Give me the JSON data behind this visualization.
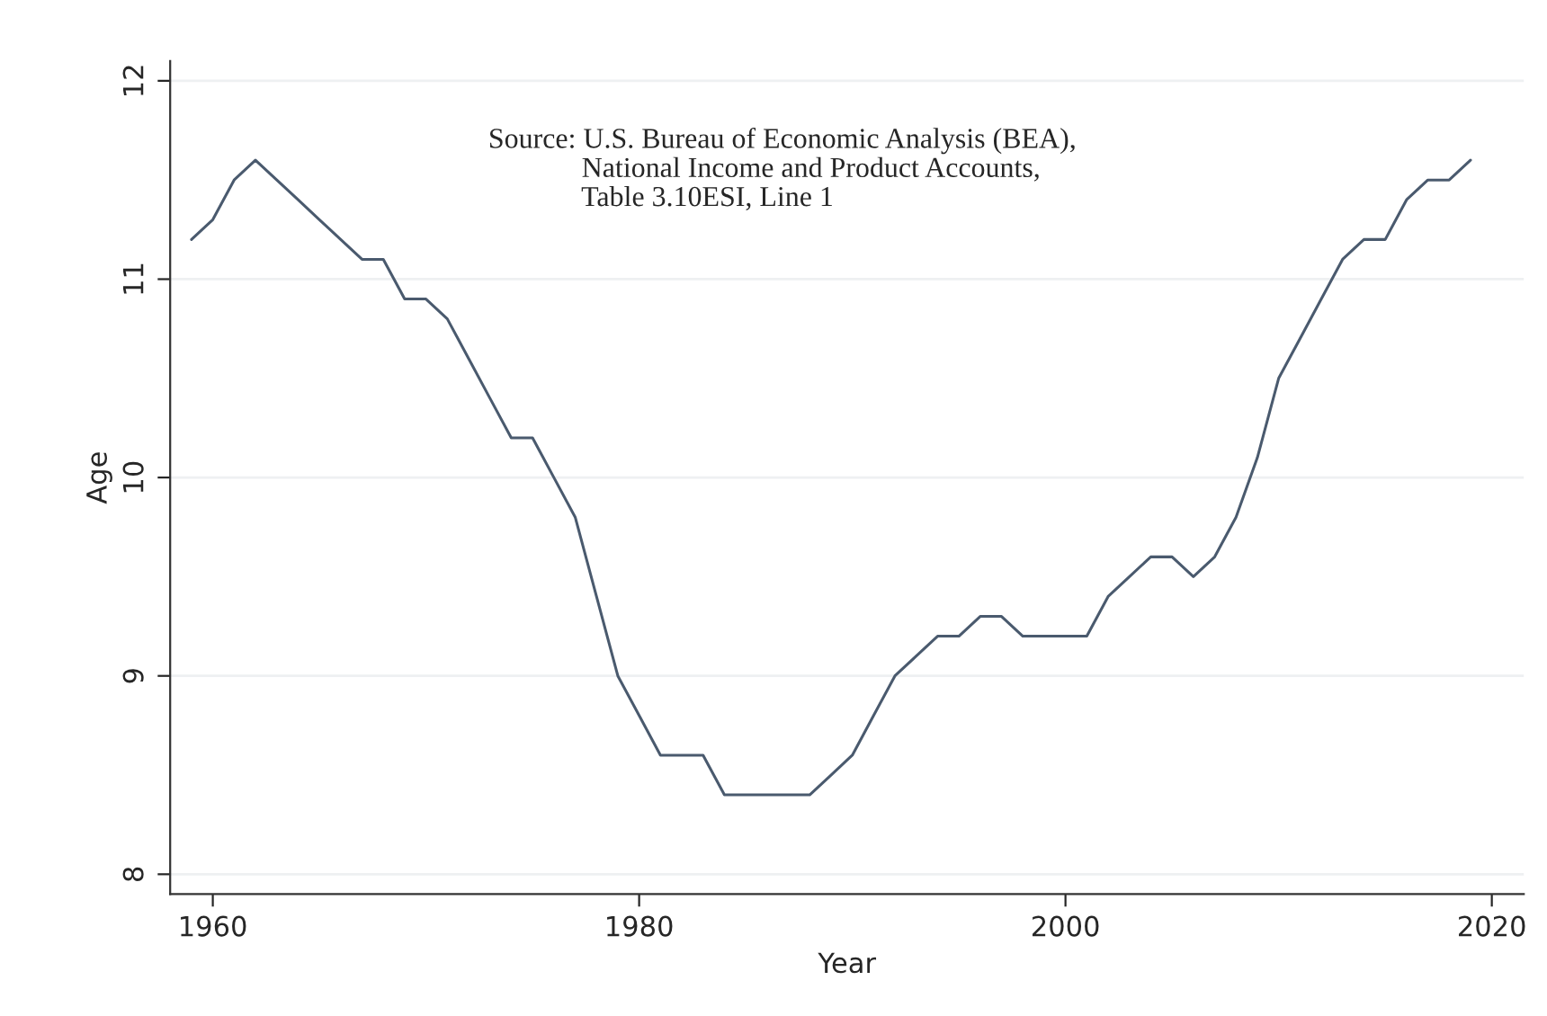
{
  "chart_data": {
    "type": "line",
    "xlabel": "Year",
    "ylabel": "Age",
    "x": [
      1959,
      1960,
      1961,
      1962,
      1963,
      1964,
      1965,
      1966,
      1967,
      1968,
      1969,
      1970,
      1971,
      1972,
      1973,
      1974,
      1975,
      1976,
      1977,
      1978,
      1979,
      1980,
      1981,
      1982,
      1983,
      1984,
      1985,
      1986,
      1987,
      1988,
      1989,
      1990,
      1991,
      1992,
      1993,
      1994,
      1995,
      1996,
      1997,
      1998,
      1999,
      2000,
      2001,
      2002,
      2003,
      2004,
      2005,
      2006,
      2007,
      2008,
      2009,
      2010,
      2011,
      2012,
      2013,
      2014,
      2015,
      2016,
      2017,
      2018,
      2019
    ],
    "series": [
      {
        "color": "#4a5a6e",
        "values": [
          11.2,
          11.3,
          11.5,
          11.6,
          11.5,
          11.4,
          11.3,
          11.2,
          11.1,
          11.1,
          10.9,
          10.9,
          10.8,
          10.6,
          10.4,
          10.2,
          10.2,
          10.0,
          9.8,
          9.4,
          9.0,
          8.8,
          8.6,
          8.6,
          8.6,
          8.4,
          8.4,
          8.4,
          8.4,
          8.4,
          8.5,
          8.6,
          8.8,
          9.0,
          9.1,
          9.2,
          9.2,
          9.3,
          9.3,
          9.2,
          9.2,
          9.2,
          9.2,
          9.4,
          9.5,
          9.6,
          9.6,
          9.5,
          9.6,
          9.8,
          10.1,
          10.5,
          10.7,
          10.9,
          11.1,
          11.2,
          11.2,
          11.4,
          11.5,
          11.5,
          11.6
        ]
      }
    ],
    "xlim": [
      1958,
      2021.5
    ],
    "xticks": [
      1960,
      1980,
      2000,
      2020
    ],
    "ylim": [
      7.9,
      12.1
    ],
    "yticks": [
      8,
      9,
      10,
      11,
      12
    ],
    "grid": "y",
    "legend": false,
    "marker": "none",
    "line_style": "solid",
    "annotations": [
      "Source: U.S. Bureau of Economic Analysis (BEA),\n             National Income and Product Accounts,\n             Table 3.10ESI, Line 1"
    ]
  }
}
